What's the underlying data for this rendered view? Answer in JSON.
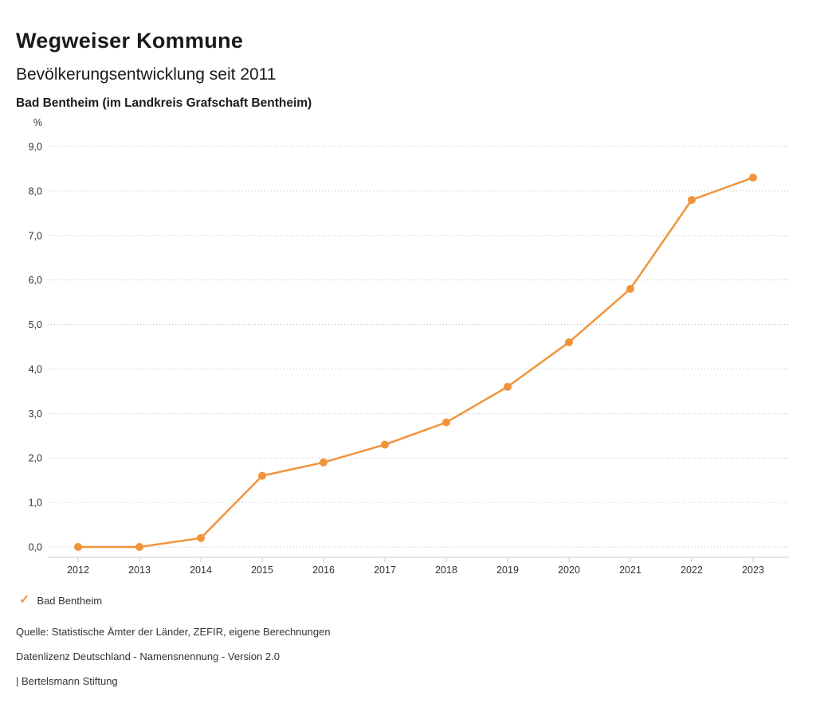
{
  "header": {
    "title": "Wegweiser Kommune"
  },
  "chart_data": {
    "type": "line",
    "title": "Bevölkerungsentwicklung seit 2011",
    "subtitle": "Bad Bentheim (im Landkreis Grafschaft Bentheim)",
    "unit": "%",
    "xlabel": "",
    "ylabel": "%",
    "x": [
      2012,
      2013,
      2014,
      2015,
      2016,
      2017,
      2018,
      2019,
      2020,
      2021,
      2022,
      2023
    ],
    "series": [
      {
        "name": "Bad Bentheim",
        "color": "#f0943c",
        "values": [
          0.0,
          0.0,
          0.2,
          1.6,
          1.9,
          2.3,
          2.8,
          3.6,
          4.6,
          5.8,
          7.8,
          8.3
        ]
      }
    ],
    "ylim": [
      0,
      9
    ],
    "ytick_step": 1.0,
    "ytick_labels": [
      "0,0",
      "1,0",
      "2,0",
      "3,0",
      "4,0",
      "5,0",
      "6,0",
      "7,0",
      "8,0",
      "9,0"
    ],
    "grid": "dotted-horizontal",
    "legend_position": "bottom-left"
  },
  "legend": {
    "items": [
      {
        "label": "Bad Bentheim",
        "color": "#f0943c",
        "marker": "check-icon"
      }
    ]
  },
  "footer": {
    "source": "Quelle: Statistische Ämter der Länder, ZEFIR, eigene Berechnungen",
    "license": "Datenlizenz Deutschland - Namensnennung - Version 2.0",
    "attribution": "| Bertelsmann Stiftung"
  }
}
